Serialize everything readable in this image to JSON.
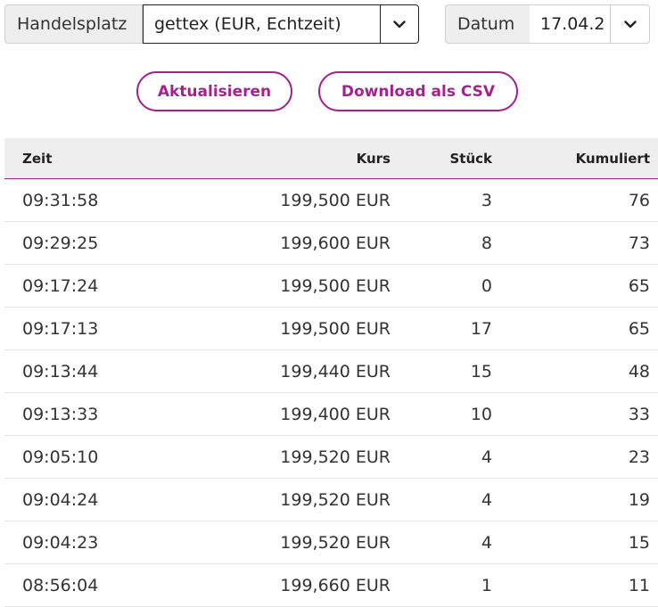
{
  "filters": {
    "handelsplatz_label": "Handelsplatz",
    "handelsplatz_value": "gettex (EUR, Echtzeit)",
    "datum_label": "Datum",
    "datum_value": "17.04.2"
  },
  "actions": {
    "refresh_label": "Aktualisieren",
    "csv_label": "Download als CSV"
  },
  "table": {
    "headers": {
      "zeit": "Zeit",
      "kurs": "Kurs",
      "stueck": "Stück",
      "kumuliert": "Kumuliert"
    },
    "rows": [
      {
        "zeit": "09:31:58",
        "kurs": "199,500 EUR",
        "stueck": "3",
        "kumuliert": "76"
      },
      {
        "zeit": "09:29:25",
        "kurs": "199,600 EUR",
        "stueck": "8",
        "kumuliert": "73"
      },
      {
        "zeit": "09:17:24",
        "kurs": "199,500 EUR",
        "stueck": "0",
        "kumuliert": "65"
      },
      {
        "zeit": "09:17:13",
        "kurs": "199,500 EUR",
        "stueck": "17",
        "kumuliert": "65"
      },
      {
        "zeit": "09:13:44",
        "kurs": "199,440 EUR",
        "stueck": "15",
        "kumuliert": "48"
      },
      {
        "zeit": "09:13:33",
        "kurs": "199,400 EUR",
        "stueck": "10",
        "kumuliert": "33"
      },
      {
        "zeit": "09:05:10",
        "kurs": "199,520 EUR",
        "stueck": "4",
        "kumuliert": "23"
      },
      {
        "zeit": "09:04:24",
        "kurs": "199,520 EUR",
        "stueck": "4",
        "kumuliert": "19"
      },
      {
        "zeit": "09:04:23",
        "kurs": "199,520 EUR",
        "stueck": "4",
        "kumuliert": "15"
      },
      {
        "zeit": "08:56:04",
        "kurs": "199,660 EUR",
        "stueck": "1",
        "kumuliert": "11"
      }
    ]
  },
  "colors": {
    "accent": "#a3238e",
    "header_bg": "#eeeeee",
    "row_divider": "#e6e6e6"
  },
  "icons": {
    "handelsplatz_dropdown": "chevron-down-icon",
    "datum_dropdown": "chevron-down-icon"
  }
}
